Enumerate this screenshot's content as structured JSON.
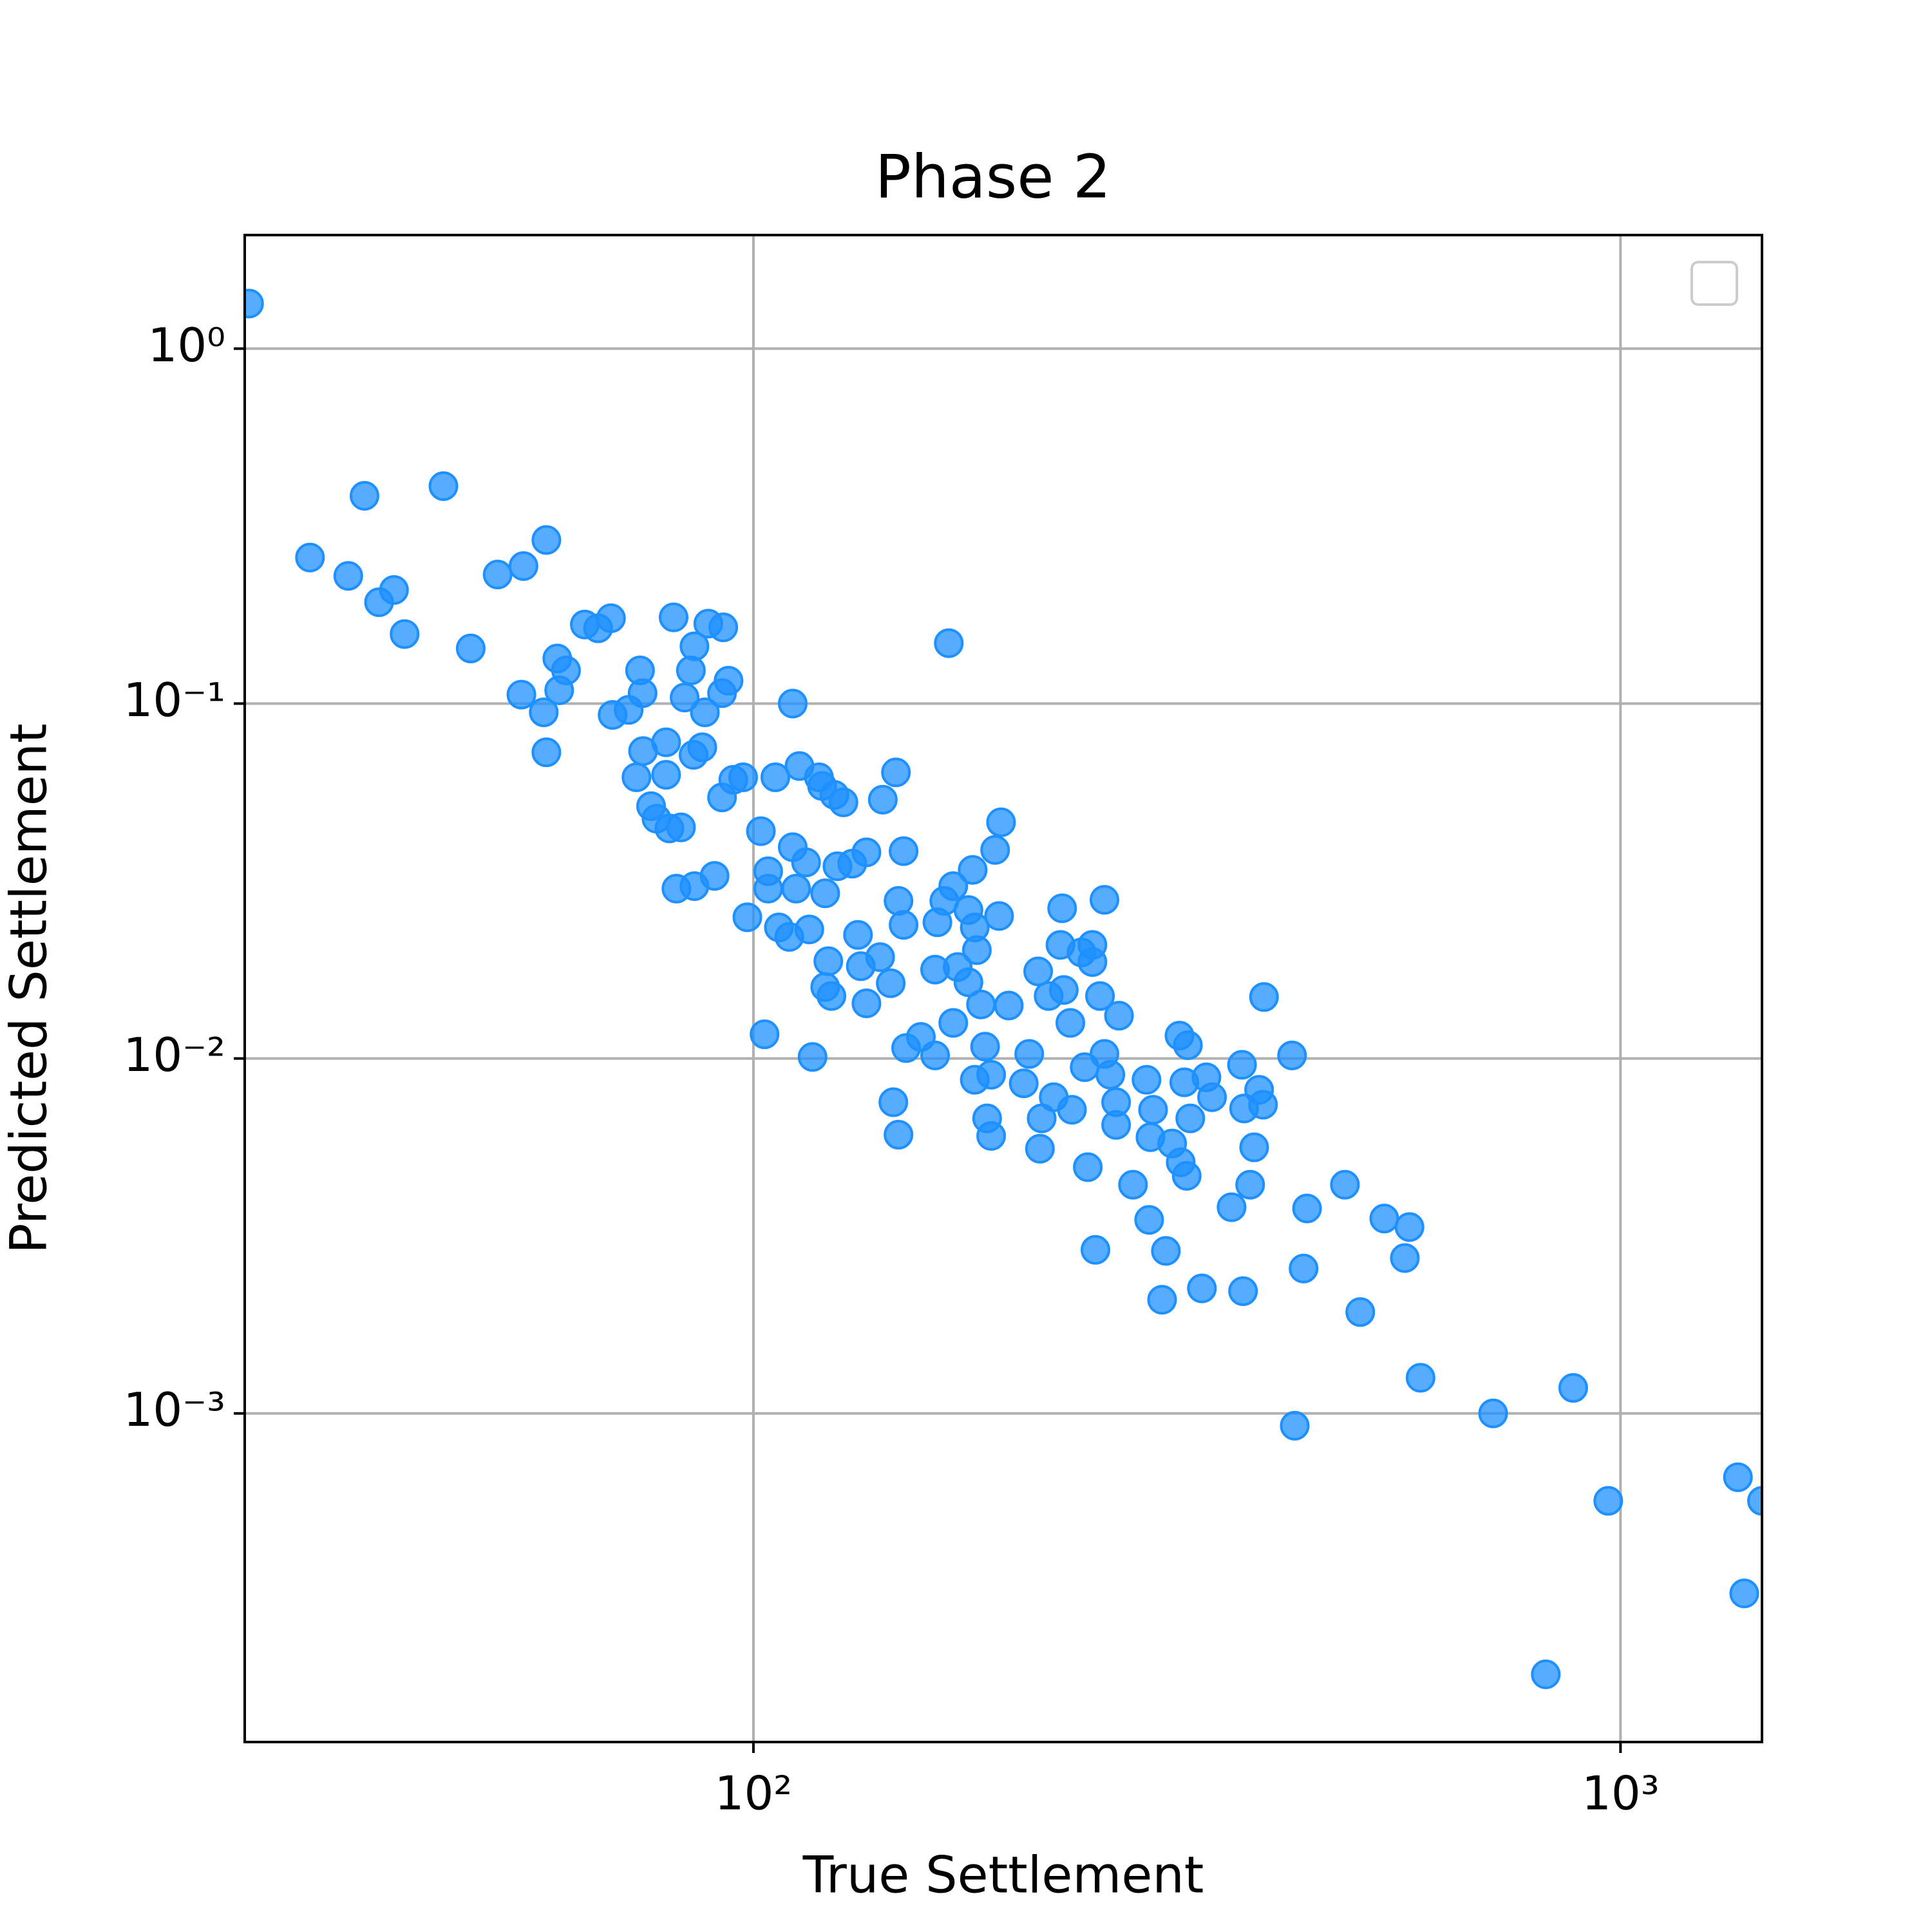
{
  "chart_data": {
    "type": "scatter",
    "title": "Phase 2",
    "x_label": "True Settlement",
    "y_label": "Predicted Settlement",
    "x_scale": "log",
    "y_scale": "log",
    "grid": true,
    "color": "#1e90ff",
    "xlim": [
      25.9,
      1456
    ],
    "ylim": [
      0.0001186,
      2.09
    ],
    "xticks": [
      {
        "value": 100,
        "label": "10²"
      },
      {
        "value": 1000,
        "label": "10³"
      }
    ],
    "yticks": [
      {
        "value": 1,
        "label": "10⁰"
      },
      {
        "value": 0.1,
        "label": "10⁻¹"
      },
      {
        "value": 0.01,
        "label": "10⁻²"
      },
      {
        "value": 0.001,
        "label": "10⁻³"
      }
    ],
    "x": [
      26.2,
      30.8,
      34.1,
      35.6,
      37.0,
      38.5,
      39.6,
      43.9,
      47.2,
      50.7,
      54.3,
      54.0,
      57.7,
      57.3,
      57.7,
      59.4,
      59.7,
      60.8,
      63.9,
      66.2,
      68.5,
      68.8,
      71.8,
      74.0,
      74.5,
      73.3,
      74.6,
      76.2,
      77.3,
      79.3,
      79.3,
      80.0,
      80.9,
      82.5,
      83.3,
      84.7,
      85.5,
      85.3,
      87.3,
      87.9,
      88.7,
      92.3,
      93.6,
      92.0,
      92.0,
      94.8,
      97.3,
      81.5,
      85.5,
      90.2,
      98.4,
      111,
      102,
      104,
      104,
      106,
      107,
      110,
      103,
      111,
      113,
      112,
      115,
      116,
      117,
      119,
      120,
      121,
      121,
      122,
      124,
      127,
      125,
      123,
      130,
      132,
      133,
      135,
      135,
      140,
      141,
      144,
      146,
      147,
      149,
      149,
      145,
      147,
      150,
      156,
      162,
      163,
      166,
      162,
      168,
      170,
      170,
      172,
      177,
      177,
      179,
      180,
      181,
      180,
      185,
      183,
      186,
      188,
      188,
      190,
      193,
      192,
      197,
      208,
      205,
      213,
      215,
      214,
      219,
      222,
      227,
      226,
      228,
      232,
      233,
      239,
      241,
      243,
      246,
      246,
      248,
      251,
      254,
      254,
      258,
      262,
      262,
      264,
      274,
      284,
      286,
      287,
      289,
      296,
      299,
      304,
      310,
      311,
      316,
      317,
      314,
      319,
      329,
      333,
      338,
      356,
      366,
      368,
      367,
      374,
      378,
      383,
      387,
      388,
      418,
      421,
      431,
      435,
      481,
      501,
      534,
      564,
      571,
      588,
      713,
      820,
      882,
      968,
      1366,
      1389,
      1456
    ],
    "values": [
      1.34,
      0.258,
      0.229,
      0.385,
      0.193,
      0.209,
      0.157,
      0.41,
      0.143,
      0.231,
      0.244,
      0.106,
      0.289,
      0.0945,
      0.0729,
      0.134,
      0.109,
      0.124,
      0.167,
      0.163,
      0.174,
      0.0929,
      0.096,
      0.124,
      0.107,
      0.062,
      0.0735,
      0.0514,
      0.0474,
      0.0778,
      0.063,
      0.0445,
      0.175,
      0.0448,
      0.104,
      0.124,
      0.145,
      0.0717,
      0.0753,
      0.0945,
      0.168,
      0.164,
      0.116,
      0.107,
      0.0544,
      0.061,
      0.062,
      0.0301,
      0.0306,
      0.0327,
      0.025,
      0.1,
      0.0437,
      0.0337,
      0.0301,
      0.062,
      0.0234,
      0.022,
      0.0117,
      0.0394,
      0.0667,
      0.0301,
      0.0357,
      0.0231,
      0.0101,
      0.062,
      0.0586,
      0.0292,
      0.0159,
      0.0188,
      0.0553,
      0.0527,
      0.0348,
      0.015,
      0.0354,
      0.0223,
      0.0182,
      0.0381,
      0.0143,
      0.0193,
      0.0536,
      0.0163,
      0.064,
      0.0278,
      0.0384,
      0.0238,
      0.00753,
      0.0061,
      0.0107,
      0.0115,
      0.0102,
      0.0242,
      0.0278,
      0.0178,
      0.148,
      0.0306,
      0.0126,
      0.0181,
      0.0164,
      0.0262,
      0.034,
      0.0234,
      0.0202,
      0.00871,
      0.0108,
      0.0142,
      0.00678,
      0.00605,
      0.009,
      0.0387,
      0.0463,
      0.0252,
      0.0141,
      0.0103,
      0.00851,
      0.0176,
      0.00678,
      0.00557,
      0.015,
      0.00778,
      0.0265,
      0.0209,
      0.0156,
      0.0126,
      0.00717,
      0.0199,
      0.00945,
      0.00494,
      0.0209,
      0.0187,
      0.00289,
      0.015,
      0.028,
      0.0103,
      0.009,
      0.00753,
      0.0065,
      0.0132,
      0.00441,
      0.00871,
      0.00351,
      0.006,
      0.00717,
      0.00209,
      0.00287,
      0.00576,
      0.0116,
      0.0051,
      0.00467,
      0.0109,
      0.00857,
      0.00678,
      0.00225,
      0.00885,
      0.00778,
      0.00381,
      0.0096,
      0.00723,
      0.00221,
      0.00441,
      0.00562,
      0.00816,
      0.00741,
      0.0149,
      0.0102,
      0.000923,
      0.00256,
      0.00378,
      0.00441,
      0.00193,
      0.00354,
      0.00274,
      0.00335,
      0.00126,
      0.001,
      0.000184,
      0.00118,
      0.000567,
      0.000661,
      0.000311,
      0.000567
    ]
  }
}
